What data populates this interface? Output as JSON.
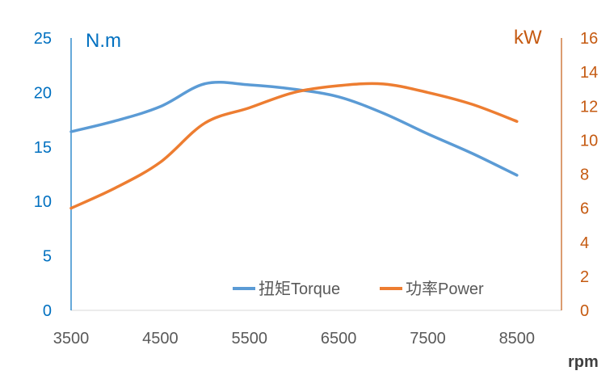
{
  "chart_data": {
    "type": "line",
    "title": "",
    "xlabel": "rpm",
    "ylabel_left": "N.m",
    "ylabel_right": "kW",
    "x": [
      3500,
      4000,
      4500,
      5000,
      5500,
      6000,
      6500,
      7000,
      7500,
      8000,
      8500
    ],
    "xlim": [
      3500,
      9000
    ],
    "x_ticks": [
      "3500",
      "4500",
      "5500",
      "6500",
      "7500",
      "8500"
    ],
    "x_tick_values": [
      3500,
      4500,
      5500,
      6500,
      7500,
      8500
    ],
    "ylim_left": [
      0,
      25
    ],
    "y_ticks_left": [
      "0",
      "5",
      "10",
      "15",
      "20",
      "25"
    ],
    "ylim_right": [
      0,
      16
    ],
    "y_ticks_right": [
      "0",
      "2",
      "4",
      "6",
      "8",
      "10",
      "12",
      "14",
      "16"
    ],
    "grid": false,
    "legend_position": "bottom-right",
    "series": [
      {
        "name": "扭矩Torque",
        "axis": "left",
        "color": "#5B9BD5",
        "values": [
          16.4,
          17.4,
          18.7,
          20.8,
          20.7,
          20.3,
          19.6,
          18.1,
          16.2,
          14.4,
          12.4
        ]
      },
      {
        "name": "功率Power",
        "axis": "right",
        "color": "#ED7D31",
        "values": [
          6.0,
          7.2,
          8.7,
          11.0,
          11.9,
          12.8,
          13.2,
          13.3,
          12.8,
          12.1,
          11.1
        ]
      }
    ],
    "colors": {
      "left_axis": "#0070C0",
      "right_axis": "#C55A11",
      "x_axis_text": "#595959"
    }
  }
}
